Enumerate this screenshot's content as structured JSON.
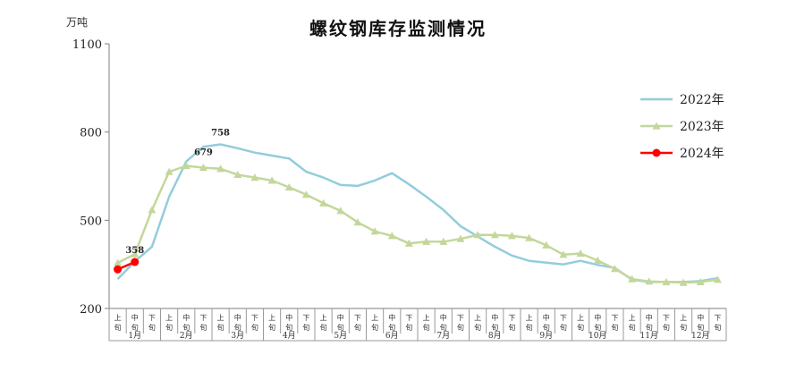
{
  "chart_data": {
    "type": "line",
    "title": "螺纹钢库存监测情况",
    "y_unit": "万吨",
    "ylim": [
      200,
      1100
    ],
    "yticks": [
      200,
      500,
      800,
      1100
    ],
    "period_labels": [
      "上旬",
      "中旬",
      "下旬"
    ],
    "months": [
      "1月",
      "2月",
      "3月",
      "4月",
      "5月",
      "6月",
      "7月",
      "8月",
      "9月",
      "10月",
      "11月",
      "12月"
    ],
    "series": [
      {
        "name": "2022年",
        "color": "#92cddc",
        "marker": "none",
        "values": [
          300,
          360,
          410,
          580,
          700,
          750,
          758,
          745,
          730,
          720,
          710,
          665,
          645,
          620,
          617,
          635,
          660,
          622,
          580,
          535,
          480,
          445,
          410,
          380,
          362,
          356,
          350,
          362,
          348,
          338,
          298,
          290,
          290,
          290,
          293,
          303
        ]
      },
      {
        "name": "2023年",
        "color": "#c4d79b",
        "marker": "triangle",
        "values": [
          355,
          385,
          535,
          665,
          685,
          679,
          675,
          655,
          645,
          635,
          612,
          587,
          558,
          532,
          493,
          462,
          447,
          421,
          427,
          427,
          437,
          450,
          450,
          447,
          440,
          415,
          383,
          387,
          363,
          335,
          300,
          292,
          290,
          288,
          290,
          298
        ]
      },
      {
        "name": "2024年",
        "color": "#ff0000",
        "marker": "circle",
        "values": [
          333,
          358
        ]
      }
    ],
    "data_labels": [
      {
        "series": "2022年",
        "index": 6,
        "text": "758"
      },
      {
        "series": "2023年",
        "index": 5,
        "text": "679"
      },
      {
        "series": "2024年",
        "index": 1,
        "text": "358"
      }
    ],
    "legend": "right",
    "grid": false
  }
}
